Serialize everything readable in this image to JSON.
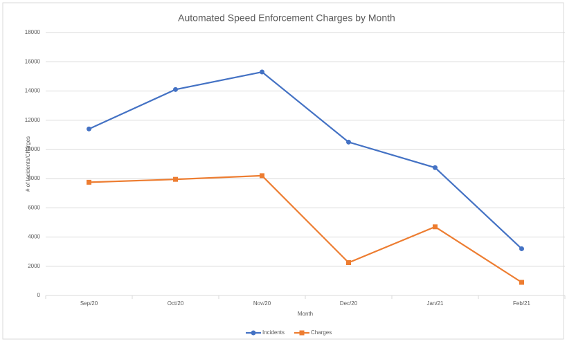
{
  "chart_data": {
    "type": "line",
    "title": "Automated Speed Enforcement Charges by Month",
    "x_label": "Month",
    "y_label": "# of Incidents/Charges",
    "categories": [
      "Sep/20",
      "Oct/20",
      "Nov/20",
      "Dec/20",
      "Jan/21",
      "Feb/21"
    ],
    "series": [
      {
        "name": "Incidents",
        "color": "#4472c4",
        "marker": "circle",
        "values": [
          11400,
          14100,
          15300,
          10500,
          8750,
          3200
        ]
      },
      {
        "name": "Charges",
        "color": "#ed7d31",
        "marker": "square",
        "values": [
          7750,
          7950,
          8200,
          2250,
          4700,
          900
        ]
      }
    ],
    "ylim": [
      0,
      18000
    ],
    "yticks": [
      0,
      2000,
      4000,
      6000,
      8000,
      10000,
      12000,
      14000,
      16000,
      18000
    ],
    "grid": true,
    "legend": "bottom"
  }
}
